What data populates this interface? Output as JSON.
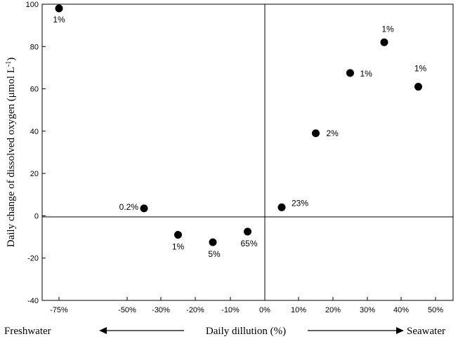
{
  "chart_data": {
    "type": "scatter",
    "ylabel": "Daily change of dissolved oxygen  (μmol L",
    "ylabel_superscript": "-1",
    "ylabel_close": ")",
    "xlabel": "Daily dillution (%)",
    "left_annotation": "Freshwater",
    "right_annotation": "Seawater",
    "ylim": [
      -40,
      100
    ],
    "yticks": [
      -40,
      -20,
      0,
      20,
      40,
      60,
      80,
      100
    ],
    "xticks": [
      {
        "label": "-75%"
      },
      {
        "label": "-50%"
      },
      {
        "label": "-30%"
      },
      {
        "label": "-20%"
      },
      {
        "label": "-10%"
      },
      {
        "label": "0%"
      },
      {
        "label": "10%"
      },
      {
        "label": "20%"
      },
      {
        "label": "30%"
      },
      {
        "label": "40%"
      },
      {
        "label": "50%"
      }
    ],
    "points": [
      {
        "x": "-75%",
        "y": 98,
        "label": "1%"
      },
      {
        "x": "-40%",
        "y": 3.5,
        "label": "0.2%"
      },
      {
        "x": "-25%",
        "y": -9,
        "label": "1%"
      },
      {
        "x": "-15%",
        "y": -12.5,
        "label": "5%"
      },
      {
        "x": "-5%",
        "y": -7.5,
        "label": "65%"
      },
      {
        "x": "5%",
        "y": 4,
        "label": "23%"
      },
      {
        "x": "15%",
        "y": 39,
        "label": "2%"
      },
      {
        "x": "25%",
        "y": 67.5,
        "label": "1%"
      },
      {
        "x": "35%",
        "y": 82,
        "label": "1%"
      },
      {
        "x": "45%",
        "y": 61,
        "label": "1%"
      }
    ]
  }
}
